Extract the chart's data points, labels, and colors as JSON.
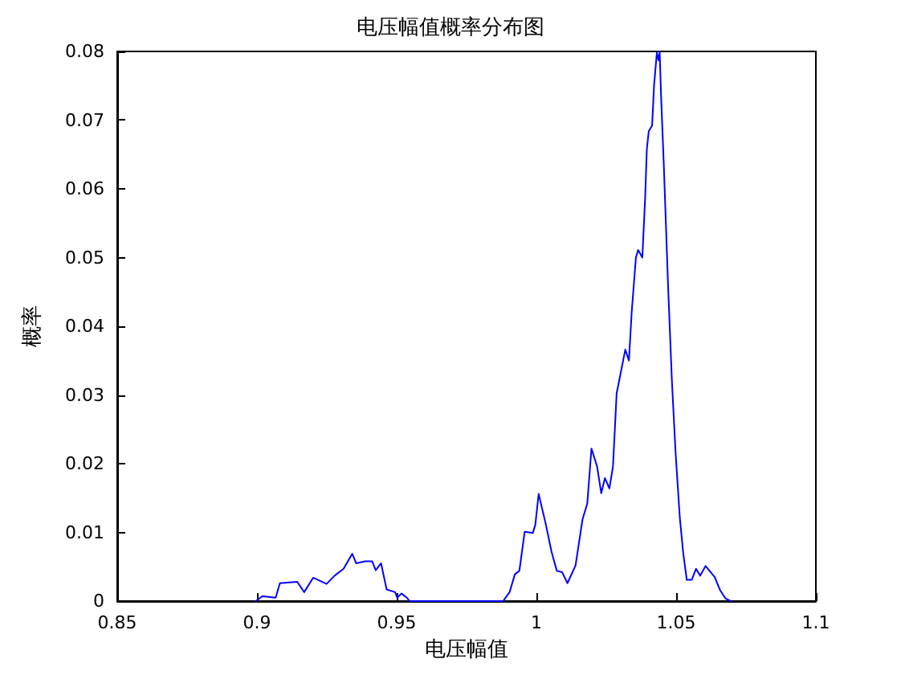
{
  "chart_data": {
    "type": "line",
    "title": "电压幅值概率分布图",
    "xlabel": "电压幅值",
    "ylabel": "概率",
    "xlim": [
      0.85,
      1.1
    ],
    "xticks": [
      0.85,
      0.9,
      0.95,
      1,
      1.05,
      1.1
    ],
    "ylim": [
      0,
      0.08
    ],
    "yticks": [
      0,
      0.01,
      0.02,
      0.03,
      0.04,
      0.05,
      0.06,
      0.07,
      0.08
    ],
    "grid": false,
    "marker": "none",
    "line_style": "solid",
    "series": [
      {
        "color": "#0000ff",
        "x": [
          0.8996,
          0.9019,
          0.9067,
          0.9082,
          0.9144,
          0.9169,
          0.9201,
          0.9249,
          0.9278,
          0.931,
          0.9341,
          0.9355,
          0.9387,
          0.9412,
          0.9425,
          0.9444,
          0.9464,
          0.9494,
          0.9502,
          0.9517,
          0.9536,
          0.9546,
          0.9881,
          0.9904,
          0.9923,
          0.9939,
          0.9958,
          0.9987,
          0.9996,
          1.0008,
          1.0034,
          1.0054,
          1.0073,
          1.0092,
          1.0111,
          1.014,
          1.0165,
          1.0182,
          1.0197,
          1.0217,
          1.0232,
          1.0245,
          1.0261,
          1.0274,
          1.0287,
          1.0318,
          1.0331,
          1.0341,
          1.0356,
          1.0364,
          1.0379,
          1.0389,
          1.0395,
          1.0402,
          1.0414,
          1.0421,
          1.0431,
          1.0437,
          1.0441,
          1.0446,
          1.0456,
          1.0471,
          1.0485,
          1.0498,
          1.0513,
          1.0525,
          1.0538,
          1.0556,
          1.0571,
          1.0586,
          1.0605,
          1.0638,
          1.0657,
          1.0676,
          1.0695
        ],
        "values": [
          0,
          0.0007,
          0.0005,
          0.0026,
          0.0028,
          0.0013,
          0.0034,
          0.0025,
          0.0037,
          0.0047,
          0.0069,
          0.0055,
          0.0058,
          0.0058,
          0.0045,
          0.0055,
          0.0017,
          0.0013,
          0.0005,
          0.0011,
          0.0005,
          0,
          0,
          0.0013,
          0.0039,
          0.0044,
          0.0101,
          0.0099,
          0.0111,
          0.0156,
          0.0111,
          0.0072,
          0.0044,
          0.0042,
          0.0026,
          0.0052,
          0.0119,
          0.0142,
          0.0222,
          0.0196,
          0.0157,
          0.0179,
          0.0164,
          0.0196,
          0.0302,
          0.0366,
          0.035,
          0.0421,
          0.05,
          0.0511,
          0.05,
          0.0586,
          0.0657,
          0.0684,
          0.0692,
          0.0751,
          0.0798,
          0.0787,
          0.08,
          0.0736,
          0.0633,
          0.046,
          0.0319,
          0.0216,
          0.0122,
          0.0071,
          0.0031,
          0.0031,
          0.0047,
          0.0037,
          0.0051,
          0.0035,
          0.0016,
          0.0004,
          0
        ]
      }
    ]
  }
}
